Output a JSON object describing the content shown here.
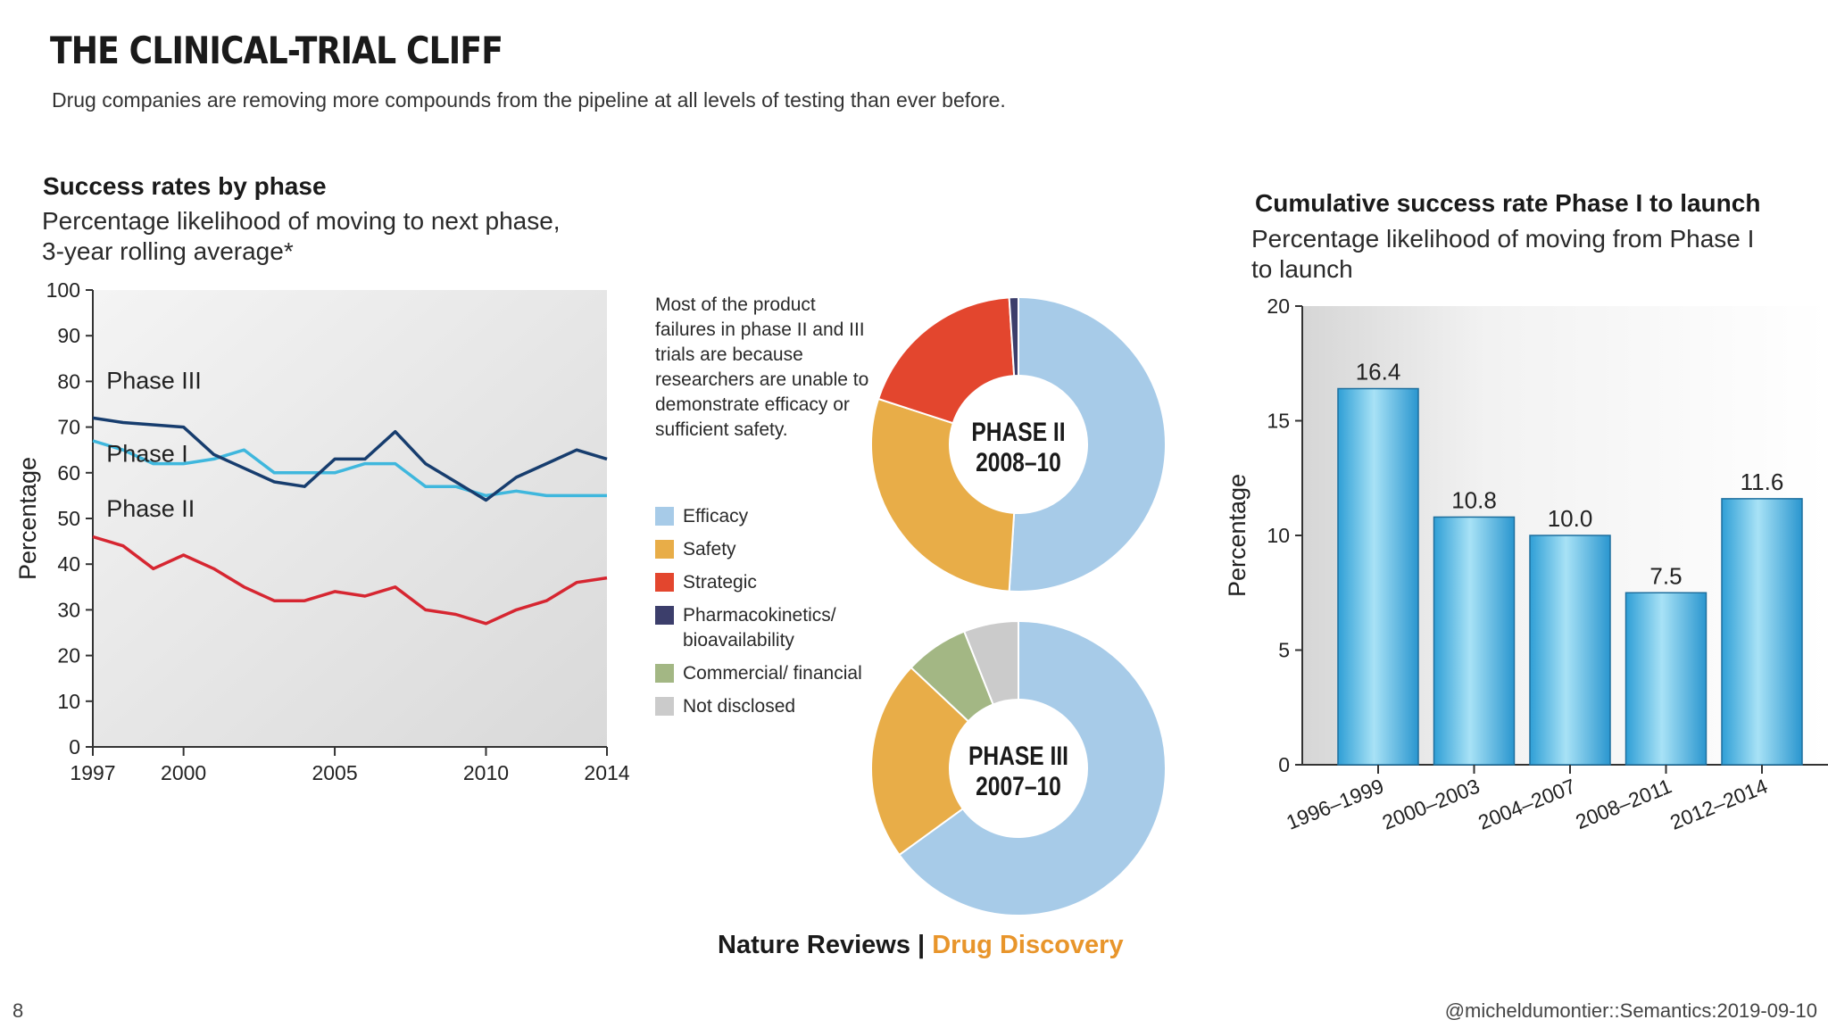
{
  "header": {
    "title": "THE CLINICAL-TRIAL CLIFF",
    "subtitle": "Drug companies are removing more compounds from the pipeline at all levels of testing than ever before."
  },
  "line_panel": {
    "title": "Success rates by phase",
    "subtitle_line1": "Percentage likelihood of moving to next phase,",
    "subtitle_line2": "3-year rolling average*"
  },
  "donut_panel": {
    "note": "Most of the product failures in phase II and III trials are because researchers are unable to demonstrate efficacy or sufficient safety.",
    "legend": [
      {
        "label": "Efficacy",
        "color": "#a7cbe8"
      },
      {
        "label": "Safety",
        "color": "#e8ad48"
      },
      {
        "label": "Strategic",
        "color": "#e3462e"
      },
      {
        "label": "Pharmacokinetics/ bioavailability",
        "color": "#3c3e6b"
      },
      {
        "label": "Commercial/ financial",
        "color": "#a3b784"
      },
      {
        "label": "Not disclosed",
        "color": "#cbcbcb"
      }
    ]
  },
  "bar_panel": {
    "title": "Cumulative success rate Phase I to launch",
    "subtitle_line1": "Percentage likelihood of moving from Phase I",
    "subtitle_line2": "to launch"
  },
  "credit": {
    "brand1": "Nature Reviews",
    "sep": " | ",
    "brand2": "Drug Discovery"
  },
  "footer": {
    "page": "8",
    "handle": "@micheldumontier::Semantics:2019-09-10"
  },
  "chart_data": [
    {
      "type": "line",
      "ylabel": "Percentage",
      "ylim": [
        0,
        100
      ],
      "yticks": [
        0,
        10,
        20,
        30,
        40,
        50,
        60,
        70,
        80,
        90,
        100
      ],
      "xlim": [
        1997,
        2014
      ],
      "xticks": [
        1997,
        2000,
        2005,
        2010,
        2014
      ],
      "grid": false,
      "series": [
        {
          "name": "Phase III",
          "color": "#173d6e",
          "x": [
            1997,
            1998,
            2000,
            2001,
            2003,
            2004,
            2005,
            2006,
            2007,
            2008,
            2009,
            2010,
            2011,
            2012,
            2013,
            2014
          ],
          "values": [
            72,
            71,
            70,
            64,
            58,
            57,
            63,
            63,
            69,
            62,
            58,
            54,
            59,
            62,
            65,
            63
          ]
        },
        {
          "name": "Phase I",
          "color": "#3fb7dd",
          "x": [
            1997,
            1998,
            1999,
            2000,
            2001,
            2002,
            2003,
            2004,
            2005,
            2006,
            2007,
            2008,
            2009,
            2010,
            2011,
            2012,
            2013,
            2014
          ],
          "values": [
            67,
            65,
            62,
            62,
            63,
            65,
            60,
            60,
            60,
            62,
            62,
            57,
            57,
            55,
            56,
            55,
            55,
            55
          ]
        },
        {
          "name": "Phase II",
          "color": "#d62631",
          "x": [
            1997,
            1998,
            1999,
            2000,
            2001,
            2002,
            2003,
            2004,
            2005,
            2006,
            2007,
            2008,
            2009,
            2010,
            2011,
            2012,
            2013,
            2014
          ],
          "values": [
            46,
            44,
            39,
            42,
            39,
            35,
            32,
            32,
            34,
            33,
            35,
            30,
            29,
            27,
            30,
            32,
            36,
            37
          ]
        }
      ]
    },
    {
      "type": "pie",
      "title": "PHASE II 2008–10",
      "title_line1": "PHASE II",
      "title_line2": "2008–10",
      "categories": [
        "Efficacy",
        "Safety",
        "Strategic",
        "Pharmacokinetics/ bioavailability"
      ],
      "values": [
        51,
        29,
        19,
        1
      ],
      "colors": [
        "#a7cbe8",
        "#e8ad48",
        "#e3462e",
        "#3c3e6b"
      ]
    },
    {
      "type": "pie",
      "title": "PHASE III 2007–10",
      "title_line1": "PHASE III",
      "title_line2": "2007–10",
      "categories": [
        "Efficacy",
        "Safety",
        "Commercial/ financial",
        "Not disclosed"
      ],
      "values": [
        65,
        22,
        7,
        6
      ],
      "colors": [
        "#a7cbe8",
        "#e8ad48",
        "#a3b784",
        "#cbcbcb"
      ]
    },
    {
      "type": "bar",
      "ylabel": "Percentage",
      "ylim": [
        0,
        20
      ],
      "yticks": [
        0,
        5,
        10,
        15,
        20
      ],
      "categories": [
        "1996–1999",
        "2000–2003",
        "2004–2007",
        "2008–2011",
        "2012–2014"
      ],
      "values": [
        16.4,
        10.8,
        10.0,
        7.5,
        11.6
      ],
      "labels": [
        "16.4",
        "10.8",
        "10.0",
        "7.5",
        "11.6"
      ]
    }
  ]
}
